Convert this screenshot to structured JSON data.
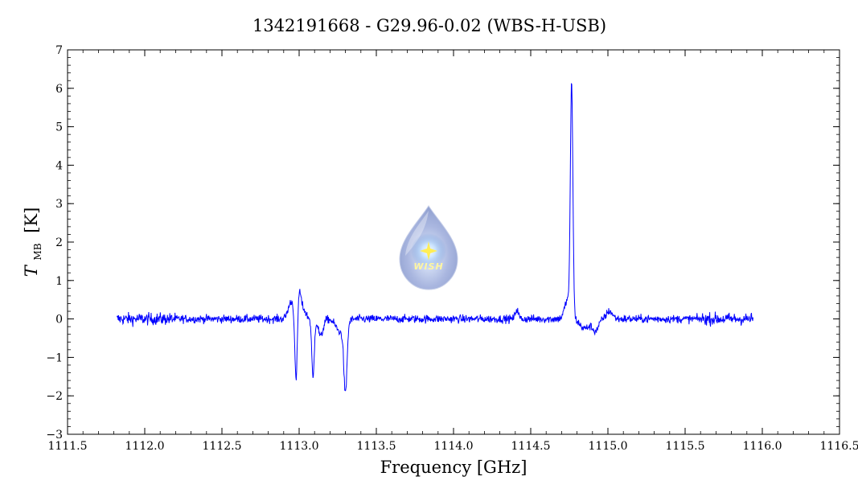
{
  "chart_data": {
    "type": "line",
    "title": "1342191668 - G29.96-0.02 (WBS-H-USB)",
    "xlabel": "Frequency [GHz]",
    "ylabel_main": "T",
    "ylabel_sub": "MB",
    "ylabel_unit": "[K]",
    "xlim": [
      1111.5,
      1116.5
    ],
    "ylim": [
      -3,
      7
    ],
    "x_ticks": [
      1111.5,
      1112.0,
      1112.5,
      1113.0,
      1113.5,
      1114.0,
      1114.5,
      1115.0,
      1115.5,
      1116.0,
      1116.5
    ],
    "x_tick_labels": [
      "1111.5",
      "1112.0",
      "1112.5",
      "1113.0",
      "1113.5",
      "1114.0",
      "1114.5",
      "1115.0",
      "1115.5",
      "1116.0",
      "1116.5"
    ],
    "y_ticks": [
      -3,
      -2,
      -1,
      0,
      1,
      2,
      3,
      4,
      5,
      6,
      7
    ],
    "y_tick_labels": [
      "−3",
      "−2",
      "−1",
      "0",
      "1",
      "2",
      "3",
      "4",
      "5",
      "6",
      "7"
    ],
    "line_color": "#0000ff",
    "x_range_data": [
      1111.82,
      1115.94
    ],
    "features": [
      {
        "x": 1112.95,
        "y": 0.45,
        "width": 0.02
      },
      {
        "x": 1112.98,
        "y": -1.85,
        "width": 0.008
      },
      {
        "x": 1113.0,
        "y": 0.55,
        "width": 0.01
      },
      {
        "x": 1113.02,
        "y": 0.3,
        "width": 0.02
      },
      {
        "x": 1113.09,
        "y": -1.55,
        "width": 0.008
      },
      {
        "x": 1113.14,
        "y": -0.45,
        "width": 0.015
      },
      {
        "x": 1113.3,
        "y": -1.75,
        "width": 0.01
      },
      {
        "x": 1113.27,
        "y": -0.35,
        "width": 0.03
      },
      {
        "x": 1114.41,
        "y": 0.25,
        "width": 0.01
      },
      {
        "x": 1114.765,
        "y": 5.95,
        "width": 0.008
      },
      {
        "x": 1114.74,
        "y": 0.5,
        "width": 0.02
      },
      {
        "x": 1114.85,
        "y": -0.25,
        "width": 0.03
      },
      {
        "x": 1114.92,
        "y": -0.3,
        "width": 0.02
      },
      {
        "x": 1115.01,
        "y": 0.2,
        "width": 0.02
      }
    ],
    "noise_level": 0.1,
    "grid": false,
    "legend": "none"
  },
  "logo": {
    "text": "WISH",
    "color_outer": "#9fb0dd",
    "color_inner": "#ffffff",
    "star_color": "#ffee55"
  }
}
